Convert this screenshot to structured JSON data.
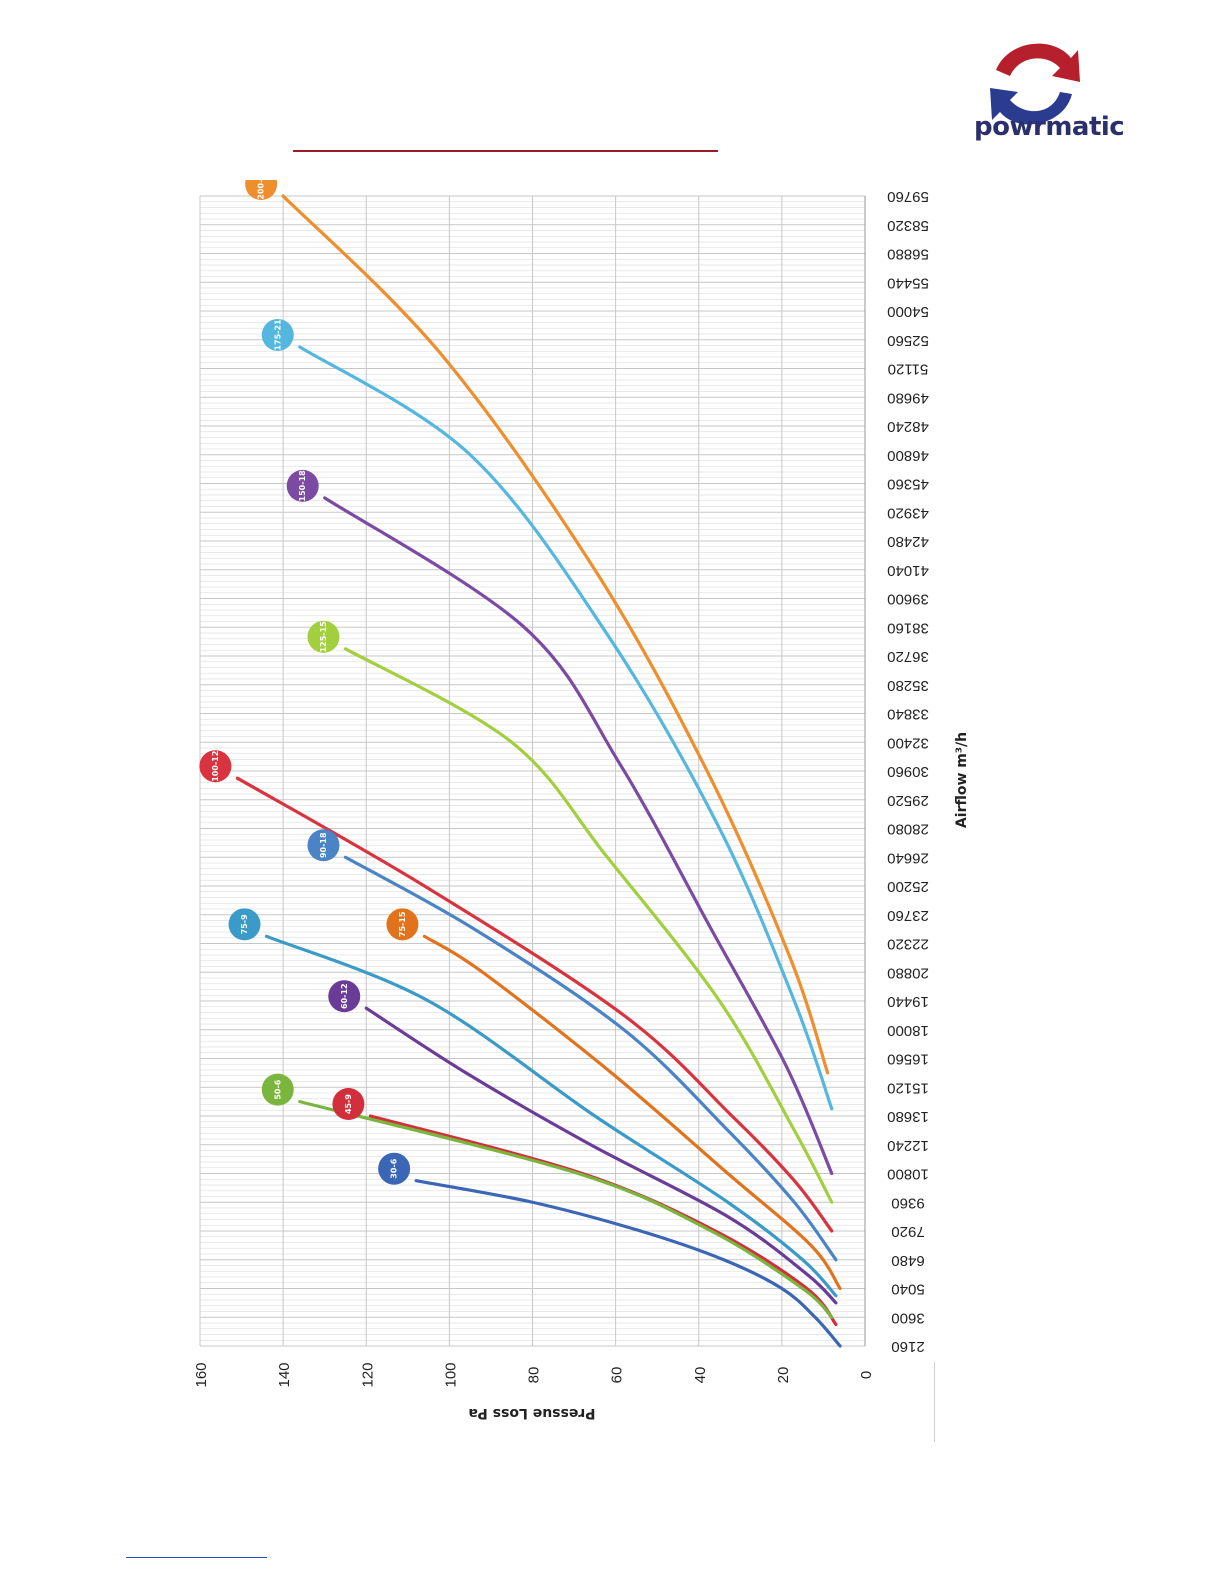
{
  "brand": {
    "name": "powrmatic",
    "colors": {
      "red_arrow": "#b5202c",
      "blue_arrow": "#2b3b8f",
      "text": "#2b2f6b"
    }
  },
  "chart_data": {
    "type": "line",
    "orientation": "rotated-90",
    "xlabel": "Airflow m³/h",
    "ylabel": "Pressue Loss Pa",
    "x_tick_labels": [
      "2160",
      "3600",
      "5040",
      "6480",
      "7920",
      "9360",
      "10800",
      "12240",
      "13680",
      "15120",
      "16560",
      "18000",
      "19440",
      "20880",
      "22320",
      "23760",
      "25200",
      "26640",
      "28080",
      "29520",
      "30960",
      "32400",
      "33840",
      "35280",
      "36720",
      "38160",
      "39600",
      "41040",
      "42480",
      "43920",
      "45360",
      "46800",
      "48240",
      "49680",
      "51120",
      "52560",
      "54000",
      "55440",
      "56880",
      "58320",
      "59760"
    ],
    "y_tick_labels": [
      "0",
      "20",
      "40",
      "60",
      "80",
      "100",
      "120",
      "140",
      "160"
    ],
    "xlim": [
      2160,
      59760
    ],
    "ylim": [
      0,
      160
    ],
    "grid": true,
    "series": [
      {
        "name": "30-6",
        "color": "#3a66b5",
        "points": [
          [
            2160,
            6
          ],
          [
            3600,
            12
          ],
          [
            5040,
            20
          ],
          [
            6480,
            34
          ],
          [
            7920,
            54
          ],
          [
            9360,
            80
          ],
          [
            10440,
            108
          ]
        ]
      },
      {
        "name": "45-9",
        "color": "#d22e3c",
        "points": [
          [
            3240,
            7
          ],
          [
            5040,
            14
          ],
          [
            7920,
            36
          ],
          [
            10800,
            68
          ],
          [
            13680,
            119
          ]
        ]
      },
      {
        "name": "50-6",
        "color": "#7ab53e",
        "points": [
          [
            3600,
            8
          ],
          [
            5040,
            15
          ],
          [
            7920,
            37
          ],
          [
            10800,
            69
          ],
          [
            14400,
            136
          ]
        ]
      },
      {
        "name": "60-12",
        "color": "#6a3c98",
        "points": [
          [
            4320,
            7
          ],
          [
            5760,
            14
          ],
          [
            8640,
            33
          ],
          [
            12240,
            66
          ],
          [
            15840,
            96
          ],
          [
            19080,
            120
          ]
        ]
      },
      {
        "name": "75-9",
        "color": "#3a9ac8",
        "points": [
          [
            4680,
            7
          ],
          [
            6480,
            15
          ],
          [
            9360,
            33
          ],
          [
            13680,
            65
          ],
          [
            19440,
            105
          ],
          [
            22680,
            144
          ]
        ]
      },
      {
        "name": "75-15",
        "color": "#e2731d",
        "points": [
          [
            5040,
            6
          ],
          [
            7200,
            13
          ],
          [
            10800,
            33
          ],
          [
            15840,
            61
          ],
          [
            20880,
            92
          ],
          [
            22680,
            106
          ]
        ]
      },
      {
        "name": "90-18",
        "color": "#4a84c6",
        "points": [
          [
            6480,
            7
          ],
          [
            9360,
            17
          ],
          [
            12960,
            33
          ],
          [
            18000,
            58
          ],
          [
            23040,
            94
          ],
          [
            26640,
            125
          ]
        ]
      },
      {
        "name": "100-12",
        "color": "#d8333f",
        "points": [
          [
            7920,
            8
          ],
          [
            10440,
            17
          ],
          [
            13680,
            32
          ],
          [
            18720,
            58
          ],
          [
            25200,
            106
          ],
          [
            30600,
            151
          ]
        ]
      },
      {
        "name": "125-15",
        "color": "#a2cf3d",
        "points": [
          [
            9360,
            8
          ],
          [
            12960,
            17
          ],
          [
            19440,
            35
          ],
          [
            26640,
            62
          ],
          [
            32400,
            85
          ],
          [
            37080,
            125
          ]
        ]
      },
      {
        "name": "150-18",
        "color": "#7b4aa3",
        "points": [
          [
            10800,
            8
          ],
          [
            16200,
            19
          ],
          [
            23040,
            37
          ],
          [
            31320,
            59
          ],
          [
            38160,
            82
          ],
          [
            44640,
            130
          ]
        ]
      },
      {
        "name": "175-21",
        "color": "#55b7e0",
        "points": [
          [
            14040,
            8
          ],
          [
            19440,
            17
          ],
          [
            28080,
            35
          ],
          [
            37800,
            62
          ],
          [
            46800,
            95
          ],
          [
            52200,
            136
          ]
        ]
      },
      {
        "name": "200-24",
        "color": "#ef8e2c",
        "points": [
          [
            15840,
            9
          ],
          [
            21600,
            18
          ],
          [
            30960,
            38
          ],
          [
            41040,
            65
          ],
          [
            51840,
            102
          ],
          [
            59760,
            140
          ]
        ]
      }
    ]
  }
}
